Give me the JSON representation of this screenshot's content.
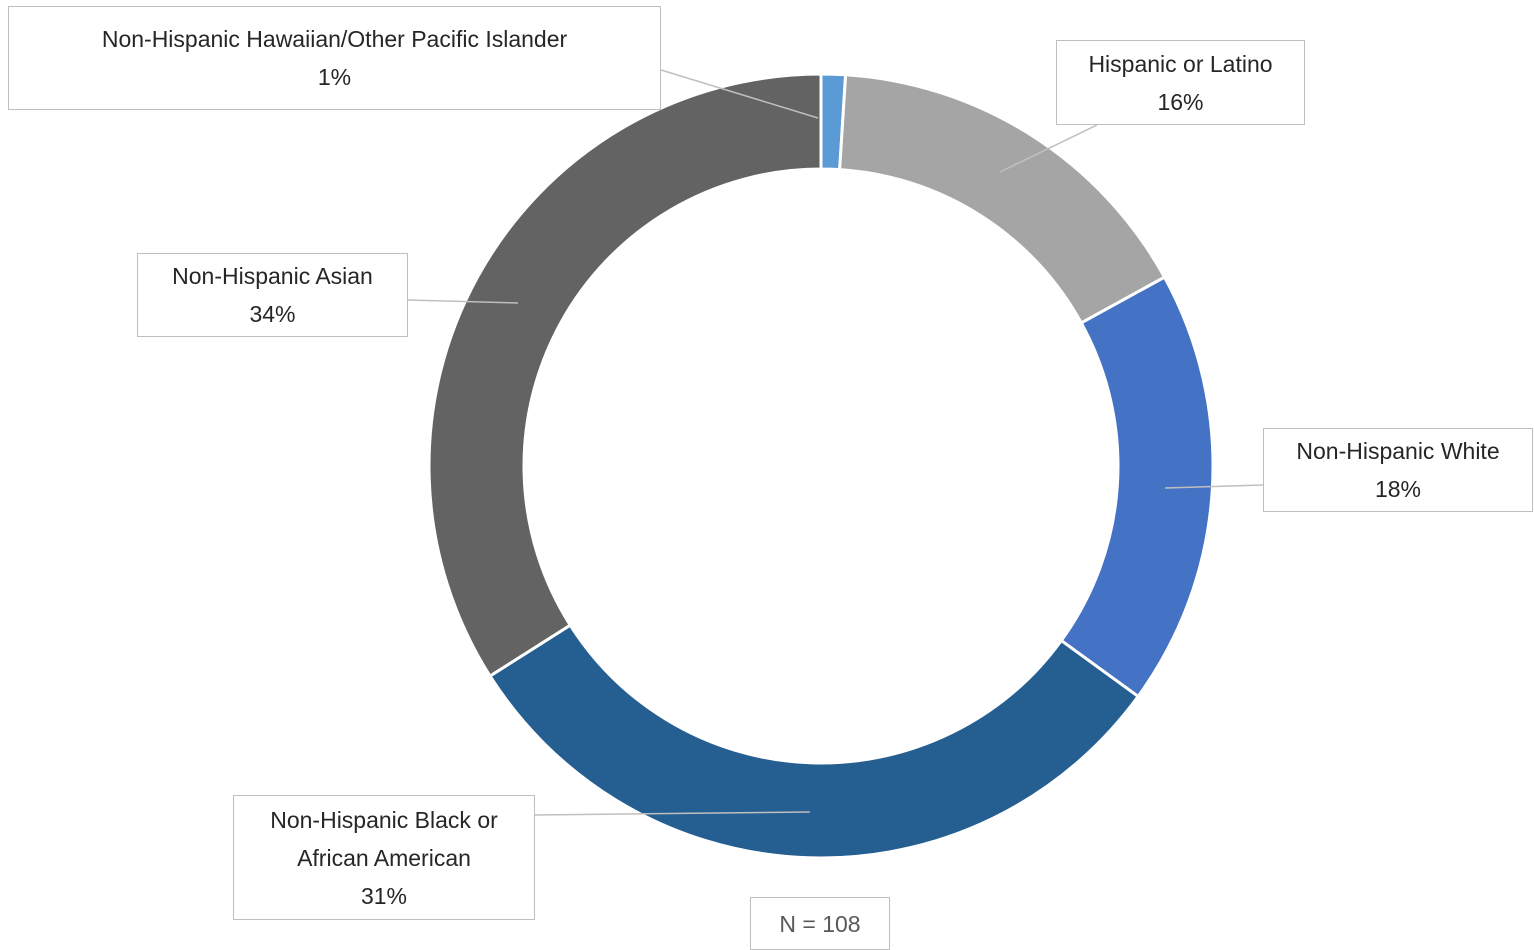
{
  "chart_data": {
    "type": "donut",
    "categories": [
      "Non-Hispanic Hawaiian/Other Pacific Islander",
      "Hispanic or Latino",
      "Non-Hispanic White",
      "Non-Hispanic Black or African American",
      "Non-Hispanic Asian"
    ],
    "values": [
      1,
      16,
      18,
      31,
      34
    ],
    "value_labels": [
      "1%",
      "16%",
      "18%",
      "31%",
      "34%"
    ],
    "colors": [
      "#5b9bd5",
      "#a5a5a5",
      "#4472c4",
      "#255e91",
      "#636363"
    ],
    "annotation": "N = 108"
  }
}
